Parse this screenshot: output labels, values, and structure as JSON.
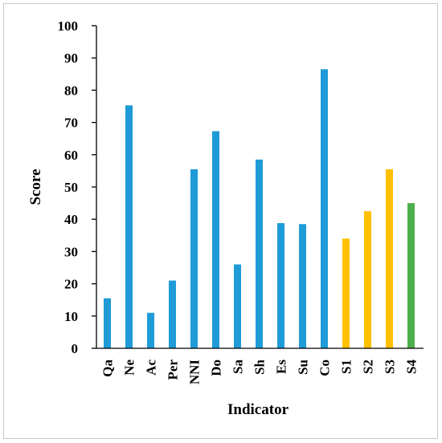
{
  "chart_data": {
    "type": "bar",
    "title": "",
    "xlabel": "Indicator",
    "ylabel": "Score",
    "ylim": [
      0,
      100
    ],
    "yticks": [
      0,
      10,
      20,
      30,
      40,
      50,
      60,
      70,
      80,
      90,
      100
    ],
    "grid": false,
    "legend": "none",
    "categories": [
      "Qa",
      "Ne",
      "Ac",
      "Per",
      "NNI",
      "Do",
      "Sa",
      "Sh",
      "Es",
      "Su",
      "Co",
      "S1",
      "S2",
      "S3",
      "S4"
    ],
    "values": [
      15.5,
      75.3,
      11.0,
      21.0,
      55.5,
      67.3,
      26.0,
      58.5,
      38.8,
      38.5,
      86.5,
      34.0,
      42.5,
      55.5,
      45.0
    ],
    "bar_colors": [
      "#1f9bd7",
      "#1f9bd7",
      "#1f9bd7",
      "#1f9bd7",
      "#1f9bd7",
      "#1f9bd7",
      "#1f9bd7",
      "#1f9bd7",
      "#1f9bd7",
      "#1f9bd7",
      "#1f9bd7",
      "#ffc000",
      "#ffc000",
      "#ffc000",
      "#4cae4c"
    ]
  }
}
